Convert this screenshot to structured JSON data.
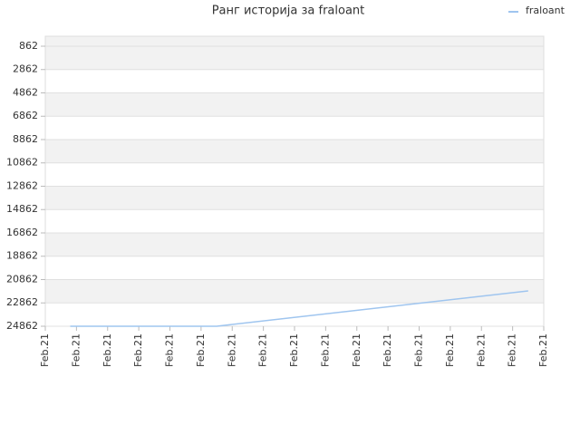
{
  "chart_data": {
    "type": "line",
    "title": "Ранг историја за fraloant",
    "x": [
      0.8,
      5.5,
      15.5
    ],
    "series": [
      {
        "name": "fraloant",
        "color": "#9fc5ef",
        "values": [
          24862,
          24862,
          21833
        ]
      }
    ],
    "xlim": [
      0,
      16
    ],
    "xticks": [
      {
        "value": 0,
        "label": "Feb.21"
      },
      {
        "value": 1,
        "label": "Feb.21"
      },
      {
        "value": 2,
        "label": "Feb.21"
      },
      {
        "value": 3,
        "label": "Feb.21"
      },
      {
        "value": 4,
        "label": "Feb.21"
      },
      {
        "value": 5,
        "label": "Feb.21"
      },
      {
        "value": 6,
        "label": "Feb.21"
      },
      {
        "value": 7,
        "label": "Feb.21"
      },
      {
        "value": 8,
        "label": "Feb.21"
      },
      {
        "value": 9,
        "label": "Feb.21"
      },
      {
        "value": 10,
        "label": "Feb.21"
      },
      {
        "value": 11,
        "label": "Feb.21"
      },
      {
        "value": 12,
        "label": "Feb.21"
      },
      {
        "value": 13,
        "label": "Feb.21"
      },
      {
        "value": 14,
        "label": "Feb.21"
      },
      {
        "value": 15,
        "label": "Feb.21"
      },
      {
        "value": 16,
        "label": "Feb.21"
      }
    ],
    "ylim": [
      8,
      24862
    ],
    "y_inverted": true,
    "yticks": [
      862,
      2862,
      4862,
      6862,
      8862,
      10862,
      12862,
      14862,
      16862,
      18862,
      20862,
      22862,
      24862
    ],
    "grid": true,
    "legend": "top-right"
  }
}
